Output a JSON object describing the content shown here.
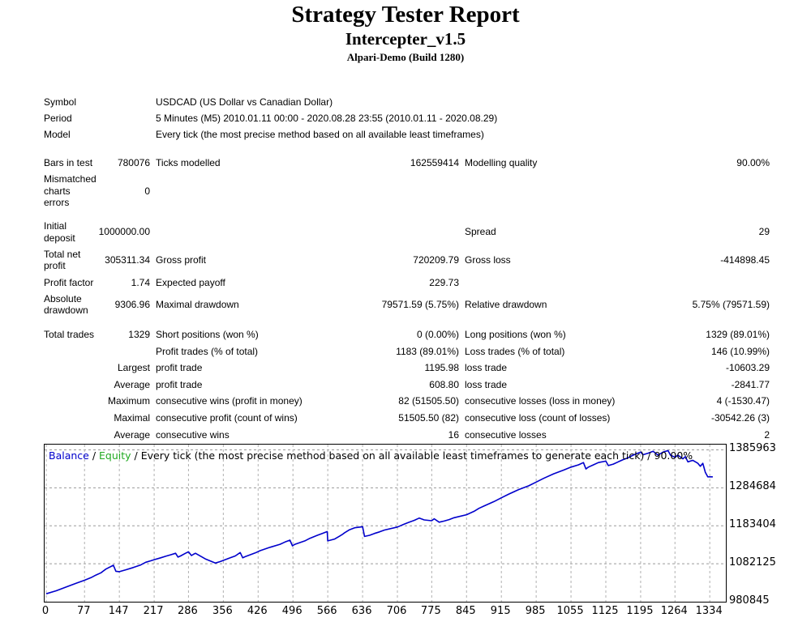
{
  "header": {
    "title": "Strategy Tester Report",
    "expert": "Intercepter_v1.5",
    "server": "Alpari-Demo (Build 1280)"
  },
  "settings": {
    "symbol_label": "Symbol",
    "symbol_value": "USDCAD (US Dollar vs Canadian Dollar)",
    "period_label": "Period",
    "period_value": "5 Minutes (M5) 2010.01.11 00:00 - 2020.08.28 23:55 (2010.01.11 - 2020.08.29)",
    "model_label": "Model",
    "model_value": "Every tick (the most precise method based on all available least timeframes)"
  },
  "stats": {
    "bars_label": "Bars in test",
    "bars_value": "780076",
    "ticks_label": "Ticks modelled",
    "ticks_value": "162559414",
    "quality_label": "Modelling quality",
    "quality_value": "90.00%",
    "mismatch_label_1": "Mismatched",
    "mismatch_label_2": "charts",
    "mismatch_label_3": "errors",
    "mismatch_value": "0",
    "deposit_label_1": "Initial",
    "deposit_label_2": "deposit",
    "deposit_value": "1000000.00",
    "spread_label": "Spread",
    "spread_value": "29",
    "net_label_1": "Total net",
    "net_label_2": "profit",
    "net_value": "305311.34",
    "gross_profit_label": "Gross profit",
    "gross_profit_value": "720209.79",
    "gross_loss_label": "Gross loss",
    "gross_loss_value": "-414898.45",
    "pf_label": "Profit factor",
    "pf_value": "1.74",
    "payoff_label": "Expected payoff",
    "payoff_value": "229.73",
    "abs_dd_label_1": "Absolute",
    "abs_dd_label_2": "drawdown",
    "abs_dd_value": "9306.96",
    "max_dd_label": "Maximal drawdown",
    "max_dd_value": "79571.59 (5.75%)",
    "rel_dd_label": "Relative drawdown",
    "rel_dd_value": "5.75% (79571.59)",
    "trades_label": "Total trades",
    "trades_value": "1329",
    "short_label": "Short positions (won %)",
    "short_value": "0 (0.00%)",
    "long_label": "Long positions (won %)",
    "long_value": "1329 (89.01%)",
    "pt_label": "Profit trades (% of total)",
    "pt_value": "1183 (89.01%)",
    "lt_label": "Loss trades (% of total)",
    "lt_value": "146 (10.99%)",
    "largest_label": "Largest",
    "largest_profit_label": "profit trade",
    "largest_profit_value": "1195.98",
    "largest_loss_label": "loss trade",
    "largest_loss_value": "-10603.29",
    "average_label": "Average",
    "average_profit_label": "profit trade",
    "average_profit_value": "608.80",
    "average_loss_label": "loss trade",
    "average_loss_value": "-2841.77",
    "maximum_label": "Maximum",
    "max_cw_label": "consecutive wins (profit in money)",
    "max_cw_value": "82 (51505.50)",
    "max_cl_label": "consecutive losses (loss in money)",
    "max_cl_value": "4 (-1530.47)",
    "maximal_label": "Maximal",
    "mx_cp_label": "consecutive profit (count of wins)",
    "mx_cp_value": "51505.50 (82)",
    "mx_cl_label": "consecutive loss (count of losses)",
    "mx_cl_value": "-30542.26 (3)",
    "average2_label": "Average",
    "avg_cw_label": "consecutive wins",
    "avg_cw_value": "16",
    "avg_cl_label": "consecutive losses",
    "avg_cl_value": "2"
  },
  "chart_legend": {
    "balance": "Balance",
    "sep1": " / ",
    "equity": "Equity",
    "rest": " / Every tick (the most precise method based on all available least timeframes to generate each tick) / 90.00%",
    "balance_color": "#0000cc",
    "equity_color": "#22aa22"
  },
  "chart_data": {
    "type": "line",
    "title": "",
    "xlabel": "",
    "ylabel": "",
    "x_ticks": [
      "0",
      "77",
      "147",
      "217",
      "286",
      "356",
      "426",
      "496",
      "566",
      "636",
      "706",
      "775",
      "845",
      "915",
      "985",
      "1055",
      "1125",
      "1195",
      "1264",
      "1334"
    ],
    "y_ticks": [
      "1385963",
      "1284684",
      "1183404",
      "1082125",
      "980845"
    ],
    "ylim": [
      980845,
      1400000
    ],
    "xlim": [
      0,
      1350
    ],
    "grid": true,
    "series": [
      {
        "name": "Balance",
        "color": "#0000cc",
        "x": [
          0,
          20,
          40,
          60,
          77,
          90,
          100,
          110,
          120,
          135,
          140,
          147,
          160,
          175,
          190,
          200,
          210,
          217,
          230,
          240,
          250,
          260,
          265,
          270,
          280,
          286,
          292,
          297,
          300,
          320,
          340,
          350,
          356,
          370,
          380,
          390,
          395,
          400,
          420,
          430,
          450,
          470,
          480,
          490,
          495,
          500,
          520,
          530,
          545,
          555,
          565,
          566,
          580,
          590,
          595,
          600,
          610,
          620,
          636,
          640,
          650,
          660,
          670,
          680,
          706,
          720,
          730,
          740,
          750,
          760,
          775,
          780,
          790,
          800,
          810,
          820,
          845,
          860,
          870,
          880,
          900,
          915,
          930,
          950,
          970,
          985,
          1000,
          1020,
          1040,
          1055,
          1070,
          1080,
          1085,
          1090,
          1100,
          1110,
          1125,
          1130,
          1140,
          1150,
          1160,
          1170,
          1180,
          1195,
          1200,
          1210,
          1220,
          1230,
          1240,
          1250,
          1255,
          1264,
          1270,
          1280,
          1285,
          1290,
          1300,
          1310,
          1315,
          1320,
          1325,
          1330,
          1340
        ],
        "values": [
          1002000,
          1010000,
          1020000,
          1030000,
          1038000,
          1045000,
          1052000,
          1058000,
          1068000,
          1078000,
          1062000,
          1061000,
          1066000,
          1072000,
          1079000,
          1086000,
          1090000,
          1093000,
          1098000,
          1102000,
          1106000,
          1110000,
          1100000,
          1103000,
          1110000,
          1114000,
          1104000,
          1108000,
          1110000,
          1095000,
          1084000,
          1088000,
          1091000,
          1098000,
          1103000,
          1112000,
          1098000,
          1101000,
          1111000,
          1117000,
          1126000,
          1134000,
          1140000,
          1145000,
          1130000,
          1134000,
          1143000,
          1150000,
          1158000,
          1163000,
          1168000,
          1143000,
          1148000,
          1156000,
          1160000,
          1165000,
          1173000,
          1178000,
          1181000,
          1155000,
          1158000,
          1163000,
          1167000,
          1172000,
          1180000,
          1188000,
          1193000,
          1198000,
          1204000,
          1199000,
          1197000,
          1202000,
          1193000,
          1196000,
          1200000,
          1205000,
          1213000,
          1222000,
          1230000,
          1236000,
          1248000,
          1258000,
          1268000,
          1280000,
          1290000,
          1300000,
          1310000,
          1322000,
          1332000,
          1340000,
          1346000,
          1352000,
          1335000,
          1340000,
          1346000,
          1352000,
          1356000,
          1344000,
          1348000,
          1354000,
          1360000,
          1365000,
          1372000,
          1380000,
          1373000,
          1377000,
          1382000,
          1372000,
          1380000,
          1384000,
          1372000,
          1366000,
          1372000,
          1362000,
          1368000,
          1354000,
          1358000,
          1350000,
          1342000,
          1350000,
          1326000,
          1314000,
          1314000
        ]
      }
    ]
  }
}
